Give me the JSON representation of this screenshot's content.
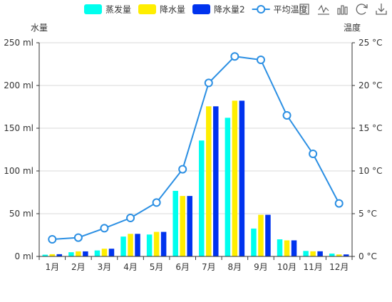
{
  "chart_data": {
    "type": "bar",
    "categories": [
      "1月",
      "2月",
      "3月",
      "4月",
      "5月",
      "6月",
      "7月",
      "8月",
      "9月",
      "10月",
      "11月",
      "12月"
    ],
    "series": [
      {
        "name": "蒸发量",
        "type": "bar",
        "axis": "left",
        "color": "#00ffee",
        "values": [
          2.0,
          4.9,
          7.0,
          23.2,
          25.6,
          76.7,
          135.6,
          162.2,
          32.6,
          20.0,
          6.4,
          3.3
        ]
      },
      {
        "name": "降水量",
        "type": "bar",
        "axis": "left",
        "color": "#ffee00",
        "values": [
          2.6,
          5.9,
          9.0,
          26.4,
          28.7,
          70.7,
          175.6,
          182.2,
          48.7,
          18.8,
          6.0,
          2.3
        ]
      },
      {
        "name": "降水量2",
        "type": "bar",
        "axis": "left",
        "color": "#0033ee",
        "values": [
          2.6,
          5.9,
          9.0,
          26.4,
          28.7,
          70.7,
          175.6,
          182.2,
          48.7,
          18.8,
          6.0,
          2.3
        ]
      },
      {
        "name": "平均温度",
        "type": "line",
        "axis": "right",
        "color": "#2b8fe3",
        "values": [
          2.0,
          2.2,
          3.3,
          4.5,
          6.3,
          10.2,
          20.3,
          23.4,
          23.0,
          16.5,
          12.0,
          6.2
        ]
      }
    ],
    "y_left": {
      "label": "水量",
      "min": 0,
      "max": 250,
      "ticks": [
        "0 ml",
        "50 ml",
        "100 ml",
        "150 ml",
        "200 ml",
        "250 ml"
      ]
    },
    "y_right": {
      "label": "温度",
      "min": 0,
      "max": 25,
      "ticks": [
        "0 °C",
        "5 °C",
        "10 °C",
        "15 °C",
        "20 °C",
        "25 °C"
      ]
    },
    "grid": true,
    "legend_position": "top-center"
  },
  "toolbox": {
    "icons": [
      "save-image-icon",
      "line-chart-icon",
      "bar-chart-icon",
      "restore-icon",
      "download-icon"
    ]
  }
}
